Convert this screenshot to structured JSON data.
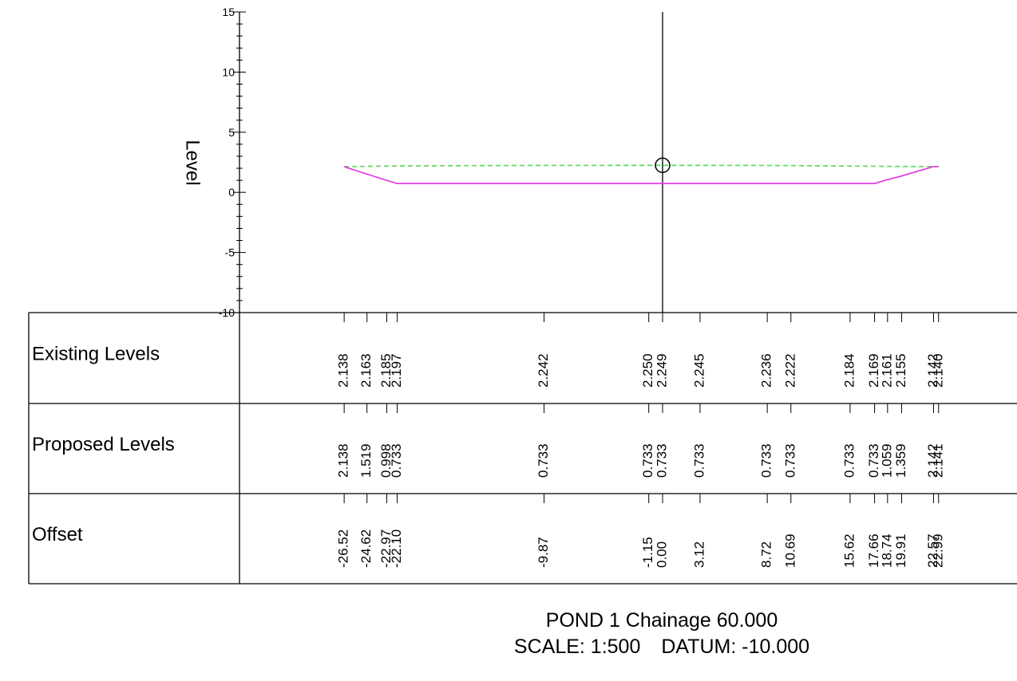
{
  "chart_data": {
    "type": "line",
    "ylabel": "Level",
    "ylim": [
      -10,
      15
    ],
    "y_ticks": [
      "15",
      "10",
      "5",
      "0",
      "-5",
      "-10"
    ],
    "y_major_step": 5,
    "y_minor_step": 1,
    "xlim": [
      -35.5,
      29.8
    ],
    "series": [
      {
        "key": "existing",
        "color": "#66dd66",
        "style": "dashed",
        "x": [
          -26.52,
          -24.62,
          -22.97,
          -22.1,
          -9.87,
          -1.15,
          0.0,
          3.12,
          8.72,
          10.69,
          15.62,
          17.66,
          18.74,
          19.91,
          22.57,
          22.99
        ],
        "y": [
          2.138,
          2.163,
          2.185,
          2.197,
          2.242,
          2.25,
          2.249,
          2.245,
          2.236,
          2.222,
          2.184,
          2.169,
          2.161,
          2.155,
          2.142,
          2.14
        ]
      },
      {
        "key": "proposed",
        "color": "#e040e0",
        "style": "solid",
        "x": [
          -26.52,
          -24.62,
          -22.97,
          -22.1,
          -9.87,
          -1.15,
          0.0,
          3.12,
          8.72,
          10.69,
          15.62,
          17.66,
          18.74,
          19.91,
          22.57,
          22.99
        ],
        "y": [
          2.138,
          1.519,
          0.998,
          0.733,
          0.733,
          0.733,
          0.733,
          0.733,
          0.733,
          0.733,
          0.733,
          0.733,
          1.059,
          1.359,
          2.142,
          2.141
        ]
      }
    ],
    "centerline_x": 0,
    "marker": {
      "x": 0,
      "y": 2.249,
      "shape": "circle"
    },
    "table": {
      "rows": [
        {
          "label": "Existing Levels",
          "values": [
            "2.138",
            "2.163",
            "2.185",
            "2.197",
            "2.242",
            "2.250",
            "2.249",
            "2.245",
            "2.236",
            "2.222",
            "2.184",
            "2.169",
            "2.161",
            "2.155",
            "2.142",
            "2.140"
          ]
        },
        {
          "label": "Proposed Levels",
          "values": [
            "2.138",
            "1.519",
            "0.998",
            "0.733",
            "0.733",
            "0.733",
            "0.733",
            "0.733",
            "0.733",
            "0.733",
            "0.733",
            "0.733",
            "1.059",
            "1.359",
            "2.142",
            "2.141"
          ]
        },
        {
          "label": "Offset",
          "values": [
            "-26.52",
            "-24.62",
            "-22.97",
            "-22.10",
            "-9.87",
            "-1.15",
            "0.00",
            "3.12",
            "8.72",
            "10.69",
            "15.62",
            "17.66",
            "18.74",
            "19.91",
            "22.57",
            "22.99"
          ]
        }
      ]
    },
    "title": "POND 1 Chainage 60.000",
    "subtitle_scale": "SCALE: 1:500",
    "subtitle_datum": "DATUM: -10.000"
  }
}
